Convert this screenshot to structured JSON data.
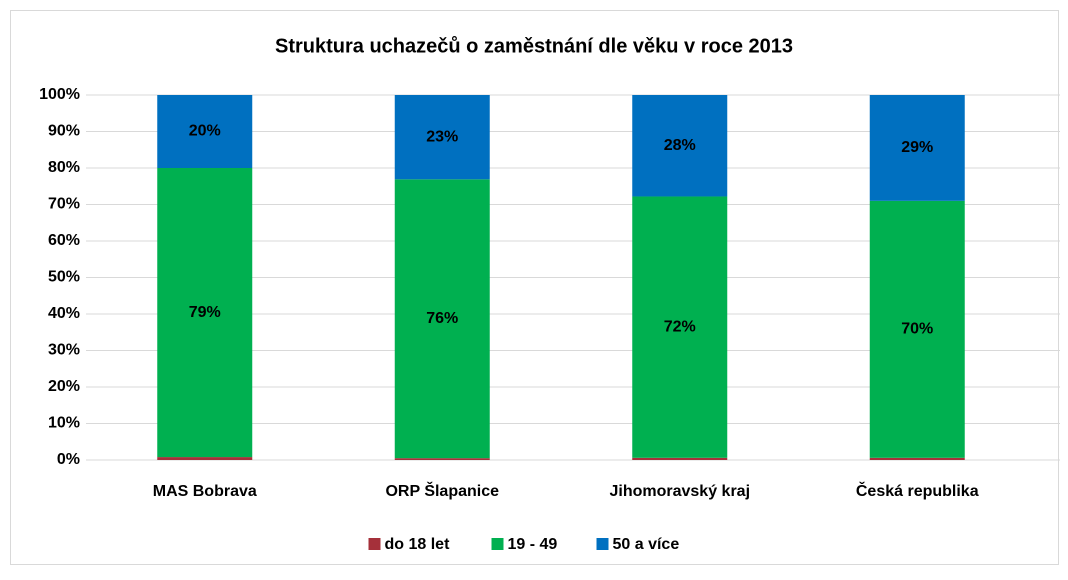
{
  "chart_data": {
    "type": "stacked_bar",
    "title": "Struktura uchazečů o zaměstnání dle věku v roce 2013",
    "categories": [
      "MAS Bobrava",
      "ORP Šlapanice",
      "Jihomoravský kraj",
      "Česká republika"
    ],
    "series": [
      {
        "name": "do 18 let",
        "color": "#a5303a",
        "values": [
          0.8,
          0.5,
          0.6,
          0.6
        ]
      },
      {
        "name": "19 - 49",
        "color": "#00b050",
        "values": [
          79.2,
          76.4,
          71.6,
          70.4
        ],
        "value_labels": [
          "79%",
          "76%",
          "72%",
          "70%"
        ]
      },
      {
        "name": "50 a více",
        "color": "#0070c0",
        "values": [
          20,
          23.1,
          27.8,
          29
        ],
        "value_labels": [
          "20%",
          "23%",
          "28%",
          "29%"
        ]
      }
    ],
    "ylim": [
      0,
      100
    ],
    "yticks": [
      {
        "value": 0,
        "label": "0%"
      },
      {
        "value": 10,
        "label": "10%"
      },
      {
        "value": 20,
        "label": "20%"
      },
      {
        "value": 30,
        "label": "30%"
      },
      {
        "value": 40,
        "label": "40%"
      },
      {
        "value": 50,
        "label": "50%"
      },
      {
        "value": 60,
        "label": "60%"
      },
      {
        "value": 70,
        "label": "70%"
      },
      {
        "value": 80,
        "label": "80%"
      },
      {
        "value": 90,
        "label": "90%"
      },
      {
        "value": 100,
        "label": "100%"
      }
    ],
    "grid": true,
    "legend": "bottom"
  }
}
